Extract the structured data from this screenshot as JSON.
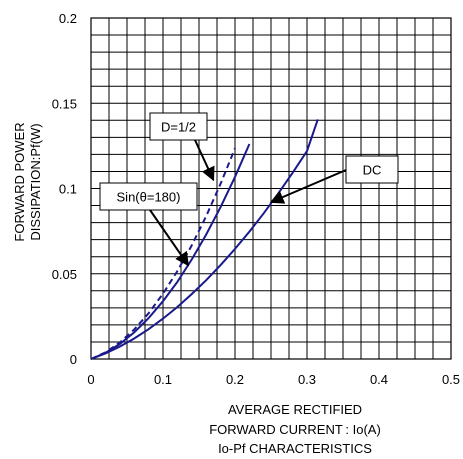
{
  "chart_data": {
    "type": "line",
    "title": "Io-Pf CHARACTERISTICS",
    "xlabel_lines": [
      "AVERAGE RECTIFIED",
      "FORWARD CURRENT : Io(A)"
    ],
    "ylabel_lines": [
      "FORWARD POWER",
      "DISSIPATION:Pf(W)"
    ],
    "xlim": [
      0,
      0.5
    ],
    "ylim": [
      0,
      0.2
    ],
    "x_ticks": [
      0,
      0.1,
      0.2,
      0.3,
      0.4,
      0.5
    ],
    "x_tick_labels": [
      "0",
      "0.1",
      "0.2",
      "0.3",
      "0.4",
      "0.5"
    ],
    "y_ticks": [
      0,
      0.05,
      0.1,
      0.15,
      0.2
    ],
    "y_tick_labels": [
      "0",
      "0.05",
      "0.1",
      "0.15",
      "0.2"
    ],
    "grid": true,
    "colors": {
      "curve": "#1a1a8c",
      "grid": "#000000",
      "arrow": "#000000"
    },
    "series": [
      {
        "name": "DC",
        "style": "solid",
        "points": [
          [
            0,
            0
          ],
          [
            0.02,
            0.0033
          ],
          [
            0.04,
            0.0073
          ],
          [
            0.06,
            0.012
          ],
          [
            0.08,
            0.0175
          ],
          [
            0.1,
            0.0237
          ],
          [
            0.12,
            0.0305
          ],
          [
            0.14,
            0.0381
          ],
          [
            0.16,
            0.0462
          ],
          [
            0.18,
            0.0551
          ],
          [
            0.2,
            0.0646
          ],
          [
            0.22,
            0.0747
          ],
          [
            0.24,
            0.0855
          ],
          [
            0.26,
            0.097
          ],
          [
            0.28,
            0.1092
          ],
          [
            0.3,
            0.122
          ],
          [
            0.315,
            0.1405
          ]
        ]
      },
      {
        "name": "D=1/2",
        "style": "solid",
        "points": [
          [
            0,
            0
          ],
          [
            0.02,
            0.0036
          ],
          [
            0.04,
            0.0088
          ],
          [
            0.06,
            0.0156
          ],
          [
            0.08,
            0.024
          ],
          [
            0.1,
            0.0339
          ],
          [
            0.12,
            0.0453
          ],
          [
            0.14,
            0.0584
          ],
          [
            0.16,
            0.073
          ],
          [
            0.18,
            0.0891
          ],
          [
            0.2,
            0.1068
          ],
          [
            0.22,
            0.1261
          ]
        ]
      },
      {
        "name": "Sin(θ=180)",
        "style": "dashed",
        "points": [
          [
            0,
            0
          ],
          [
            0.02,
            0.0039
          ],
          [
            0.04,
            0.0097
          ],
          [
            0.06,
            0.0173
          ],
          [
            0.08,
            0.0268
          ],
          [
            0.1,
            0.0383
          ],
          [
            0.12,
            0.0516
          ],
          [
            0.14,
            0.0667
          ],
          [
            0.16,
            0.0838
          ],
          [
            0.18,
            0.1028
          ],
          [
            0.2,
            0.1236
          ]
        ]
      }
    ],
    "annotations": [
      {
        "text": "D=1/2",
        "target": [
          0.17,
          0.105
        ]
      },
      {
        "text": "DC",
        "target": [
          0.25,
          0.092
        ]
      },
      {
        "text": "Sin(θ=180)",
        "target": [
          0.135,
          0.055
        ]
      }
    ]
  }
}
